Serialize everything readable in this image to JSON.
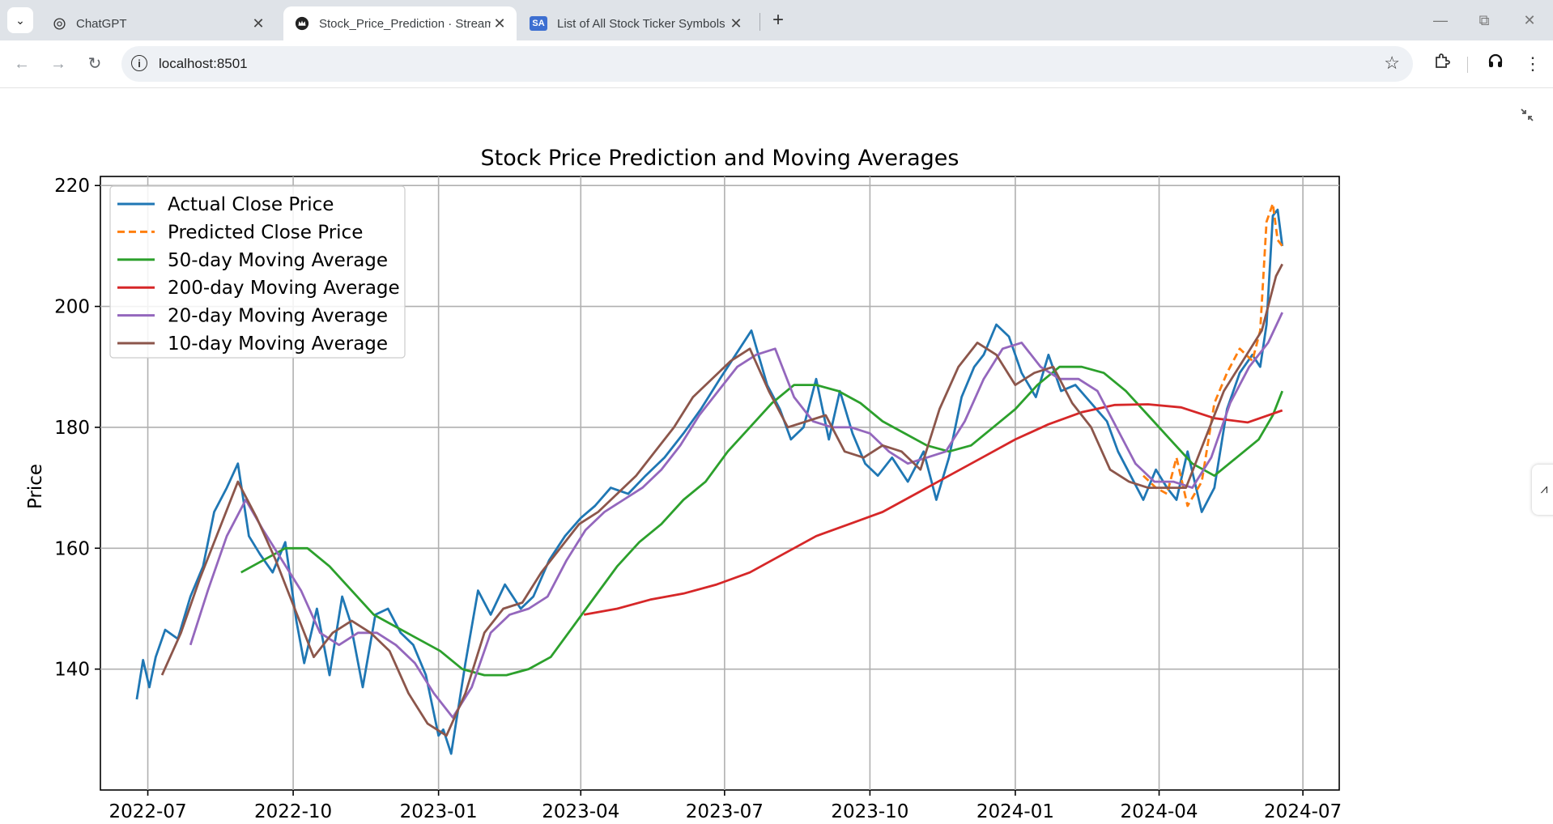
{
  "browser": {
    "tabs": [
      {
        "title": "ChatGPT",
        "icon": "chatgpt-logo-icon",
        "active": false
      },
      {
        "title": "Stock_Price_Prediction · Streamlit",
        "icon": "streamlit-crown-icon",
        "active": true
      },
      {
        "title": "List of All Stock Ticker Symbols",
        "icon": "seeking-alpha-icon",
        "favicon_text": "SA",
        "active": false
      }
    ],
    "address": "localhost:8501"
  },
  "colors": {
    "actual": "#1f77b4",
    "predicted": "#ff7f0e",
    "ma50": "#2ca02c",
    "ma200": "#d62728",
    "ma20": "#9467bd",
    "ma10": "#8c564b"
  },
  "chart_data": {
    "type": "line",
    "title": "Stock Price Prediction and Moving Averages",
    "xlabel": "",
    "ylabel": "Price",
    "ylim": [
      120,
      221.5
    ],
    "xlim": [
      "2022-06-01",
      "2024-07-24"
    ],
    "xticks": [
      "2022-07",
      "2022-10",
      "2023-01",
      "2023-04",
      "2023-07",
      "2023-10",
      "2024-01",
      "2024-04",
      "2024-07"
    ],
    "yticks": [
      140,
      160,
      180,
      200,
      220
    ],
    "grid": true,
    "legend": "upper-left",
    "series": [
      {
        "name": "Actual Close Price",
        "color": "#1f77b4",
        "style": "solid",
        "x": [
          "2022-06-24",
          "2022-06-28",
          "2022-07-02",
          "2022-07-06",
          "2022-07-12",
          "2022-07-20",
          "2022-07-28",
          "2022-08-05",
          "2022-08-12",
          "2022-08-20",
          "2022-08-27",
          "2022-09-03",
          "2022-09-10",
          "2022-09-18",
          "2022-09-26",
          "2022-10-03",
          "2022-10-08",
          "2022-10-16",
          "2022-10-24",
          "2022-11-01",
          "2022-11-06",
          "2022-11-14",
          "2022-11-22",
          "2022-11-30",
          "2022-12-08",
          "2022-12-16",
          "2022-12-24",
          "2023-01-01",
          "2023-01-04",
          "2023-01-09",
          "2023-01-18",
          "2023-01-26",
          "2023-02-03",
          "2023-02-12",
          "2023-02-22",
          "2023-03-02",
          "2023-03-12",
          "2023-03-22",
          "2023-04-01",
          "2023-04-10",
          "2023-04-20",
          "2023-05-01",
          "2023-05-12",
          "2023-05-24",
          "2023-06-05",
          "2023-06-16",
          "2023-06-28",
          "2023-07-08",
          "2023-07-18",
          "2023-07-28",
          "2023-08-05",
          "2023-08-12",
          "2023-08-20",
          "2023-08-28",
          "2023-09-05",
          "2023-09-12",
          "2023-09-20",
          "2023-09-28",
          "2023-10-06",
          "2023-10-15",
          "2023-10-25",
          "2023-11-04",
          "2023-11-12",
          "2023-11-20",
          "2023-11-28",
          "2023-12-06",
          "2023-12-12",
          "2023-12-20",
          "2023-12-28",
          "2024-01-05",
          "2024-01-14",
          "2024-01-22",
          "2024-01-30",
          "2024-02-08",
          "2024-02-18",
          "2024-02-28",
          "2024-03-06",
          "2024-03-14",
          "2024-03-22",
          "2024-03-30",
          "2024-04-06",
          "2024-04-12",
          "2024-04-19",
          "2024-04-28",
          "2024-05-06",
          "2024-05-14",
          "2024-05-22",
          "2024-05-30",
          "2024-06-04",
          "2024-06-08",
          "2024-06-12",
          "2024-06-15",
          "2024-06-18"
        ],
        "y": [
          135,
          141.5,
          137,
          142,
          146.5,
          145,
          152,
          157,
          166,
          170,
          174,
          162,
          159,
          156,
          161,
          148,
          141,
          150,
          139,
          152,
          148,
          137,
          149,
          150,
          146,
          144,
          139,
          129,
          130,
          126,
          141,
          153,
          149,
          154,
          150,
          152,
          158,
          162,
          165,
          167,
          170,
          169,
          172,
          175,
          179,
          183,
          188,
          192,
          196,
          187,
          183,
          178,
          180,
          188,
          178,
          186,
          179,
          174,
          172,
          175,
          171,
          176,
          168,
          175,
          185,
          190,
          192,
          197,
          195,
          189,
          185,
          192,
          186,
          187,
          184,
          181,
          176,
          172,
          168,
          173,
          170,
          168,
          176,
          166,
          170,
          183,
          189,
          192,
          190,
          197,
          215,
          216,
          210
        ]
      },
      {
        "name": "Predicted Close Price",
        "color": "#ff7f0e",
        "style": "dashed",
        "x": [
          "2024-03-22",
          "2024-03-30",
          "2024-04-06",
          "2024-04-12",
          "2024-04-19",
          "2024-04-28",
          "2024-05-06",
          "2024-05-14",
          "2024-05-22",
          "2024-05-30",
          "2024-06-04",
          "2024-06-08",
          "2024-06-12",
          "2024-06-15",
          "2024-06-18"
        ],
        "y": [
          172,
          170,
          169,
          175,
          167,
          171,
          184,
          189,
          193,
          191,
          196,
          214,
          217,
          211,
          210
        ]
      },
      {
        "name": "50-day Moving Average",
        "color": "#2ca02c",
        "style": "solid",
        "x": [
          "2022-08-29",
          "2022-09-12",
          "2022-09-26",
          "2022-10-10",
          "2022-10-24",
          "2022-11-07",
          "2022-11-21",
          "2022-12-05",
          "2022-12-19",
          "2023-01-02",
          "2023-01-16",
          "2023-01-30",
          "2023-02-13",
          "2023-02-27",
          "2023-03-13",
          "2023-03-27",
          "2023-04-10",
          "2023-04-24",
          "2023-05-08",
          "2023-05-22",
          "2023-06-05",
          "2023-06-19",
          "2023-07-03",
          "2023-07-17",
          "2023-07-31",
          "2023-08-14",
          "2023-08-28",
          "2023-09-11",
          "2023-09-25",
          "2023-10-09",
          "2023-10-23",
          "2023-11-06",
          "2023-11-20",
          "2023-12-04",
          "2023-12-18",
          "2024-01-01",
          "2024-01-15",
          "2024-01-29",
          "2024-02-12",
          "2024-02-26",
          "2024-03-11",
          "2024-03-25",
          "2024-04-08",
          "2024-04-22",
          "2024-05-06",
          "2024-05-20",
          "2024-06-03",
          "2024-06-12",
          "2024-06-18"
        ],
        "y": [
          156,
          158,
          160,
          160,
          157,
          153,
          149,
          147,
          145,
          143,
          140,
          139,
          139,
          140,
          142,
          147,
          152,
          157,
          161,
          164,
          168,
          171,
          176,
          180,
          184,
          187,
          187,
          186,
          184,
          181,
          179,
          177,
          176,
          177,
          180,
          183,
          187,
          190,
          190,
          189,
          186,
          182,
          178,
          174,
          172,
          175,
          178,
          182,
          186
        ]
      },
      {
        "name": "200-day Moving Average",
        "color": "#d62728",
        "style": "solid",
        "x": [
          "2023-04-03",
          "2023-04-24",
          "2023-05-15",
          "2023-06-05",
          "2023-06-26",
          "2023-07-17",
          "2023-08-07",
          "2023-08-28",
          "2023-09-18",
          "2023-10-09",
          "2023-10-30",
          "2023-11-20",
          "2023-12-11",
          "2024-01-01",
          "2024-01-22",
          "2024-02-12",
          "2024-03-04",
          "2024-03-25",
          "2024-04-15",
          "2024-05-06",
          "2024-05-27",
          "2024-06-18"
        ],
        "y": [
          149,
          150,
          151.5,
          152.5,
          154,
          156,
          159,
          162,
          164,
          166,
          169,
          172,
          175,
          178,
          180.5,
          182.5,
          183.7,
          183.8,
          183.3,
          181.5,
          180.8,
          182.8
        ]
      },
      {
        "name": "20-day Moving Average",
        "color": "#9467bd",
        "style": "solid",
        "x": [
          "2022-07-28",
          "2022-08-08",
          "2022-08-20",
          "2022-09-01",
          "2022-09-12",
          "2022-09-24",
          "2022-10-06",
          "2022-10-18",
          "2022-10-30",
          "2022-11-11",
          "2022-11-23",
          "2022-12-05",
          "2022-12-17",
          "2022-12-29",
          "2023-01-10",
          "2023-01-22",
          "2023-02-03",
          "2023-02-15",
          "2023-02-27",
          "2023-03-11",
          "2023-03-23",
          "2023-04-04",
          "2023-04-16",
          "2023-04-28",
          "2023-05-10",
          "2023-05-22",
          "2023-06-03",
          "2023-06-15",
          "2023-06-27",
          "2023-07-09",
          "2023-07-21",
          "2023-08-02",
          "2023-08-14",
          "2023-08-26",
          "2023-09-07",
          "2023-09-19",
          "2023-10-01",
          "2023-10-13",
          "2023-10-25",
          "2023-11-06",
          "2023-11-18",
          "2023-11-30",
          "2023-12-12",
          "2023-12-24",
          "2024-01-05",
          "2024-01-17",
          "2024-01-29",
          "2024-02-10",
          "2024-02-22",
          "2024-03-05",
          "2024-03-17",
          "2024-03-29",
          "2024-04-10",
          "2024-04-22",
          "2024-05-04",
          "2024-05-16",
          "2024-05-28",
          "2024-06-09",
          "2024-06-18"
        ],
        "y": [
          144,
          153,
          162,
          168,
          163,
          158,
          153,
          146,
          144,
          146,
          146,
          144,
          141,
          136,
          132,
          137,
          146,
          149,
          150,
          152,
          158,
          163,
          166,
          168,
          170,
          173,
          177,
          182,
          186,
          190,
          192,
          193,
          185,
          181,
          180,
          180,
          179,
          176,
          174,
          175,
          176,
          181,
          188,
          193,
          194,
          190,
          188,
          188,
          186,
          180,
          174,
          171,
          171,
          170,
          175,
          184,
          190,
          194,
          199
        ]
      },
      {
        "name": "10-day Moving Average",
        "color": "#8c564b",
        "style": "solid",
        "x": [
          "2022-07-10",
          "2022-07-22",
          "2022-08-03",
          "2022-08-15",
          "2022-08-27",
          "2022-09-08",
          "2022-09-20",
          "2022-10-02",
          "2022-10-14",
          "2022-10-26",
          "2022-11-07",
          "2022-11-19",
          "2022-12-01",
          "2022-12-13",
          "2022-12-25",
          "2023-01-06",
          "2023-01-18",
          "2023-01-30",
          "2023-02-11",
          "2023-02-23",
          "2023-03-07",
          "2023-03-19",
          "2023-03-31",
          "2023-04-12",
          "2023-04-24",
          "2023-05-06",
          "2023-05-18",
          "2023-05-30",
          "2023-06-11",
          "2023-06-23",
          "2023-07-05",
          "2023-07-17",
          "2023-07-29",
          "2023-08-10",
          "2023-08-22",
          "2023-09-03",
          "2023-09-15",
          "2023-09-27",
          "2023-10-09",
          "2023-10-21",
          "2023-11-02",
          "2023-11-14",
          "2023-11-26",
          "2023-12-08",
          "2023-12-20",
          "2024-01-01",
          "2024-01-13",
          "2024-01-25",
          "2024-02-06",
          "2024-02-18",
          "2024-03-01",
          "2024-03-13",
          "2024-03-25",
          "2024-04-06",
          "2024-04-18",
          "2024-04-30",
          "2024-05-12",
          "2024-05-24",
          "2024-06-05",
          "2024-06-14",
          "2024-06-18"
        ],
        "y": [
          139,
          146,
          155,
          163,
          171,
          165,
          158,
          150,
          142,
          146,
          148,
          146,
          143,
          136,
          131,
          129,
          136,
          146,
          150,
          151,
          156,
          160,
          164,
          166,
          169,
          172,
          176,
          180,
          185,
          188,
          191,
          193,
          186,
          180,
          181,
          182,
          176,
          175,
          177,
          176,
          173,
          183,
          190,
          194,
          192,
          187,
          189,
          190,
          184,
          180,
          173,
          171,
          170,
          170,
          170,
          178,
          186,
          191,
          196,
          205,
          207
        ]
      }
    ]
  }
}
